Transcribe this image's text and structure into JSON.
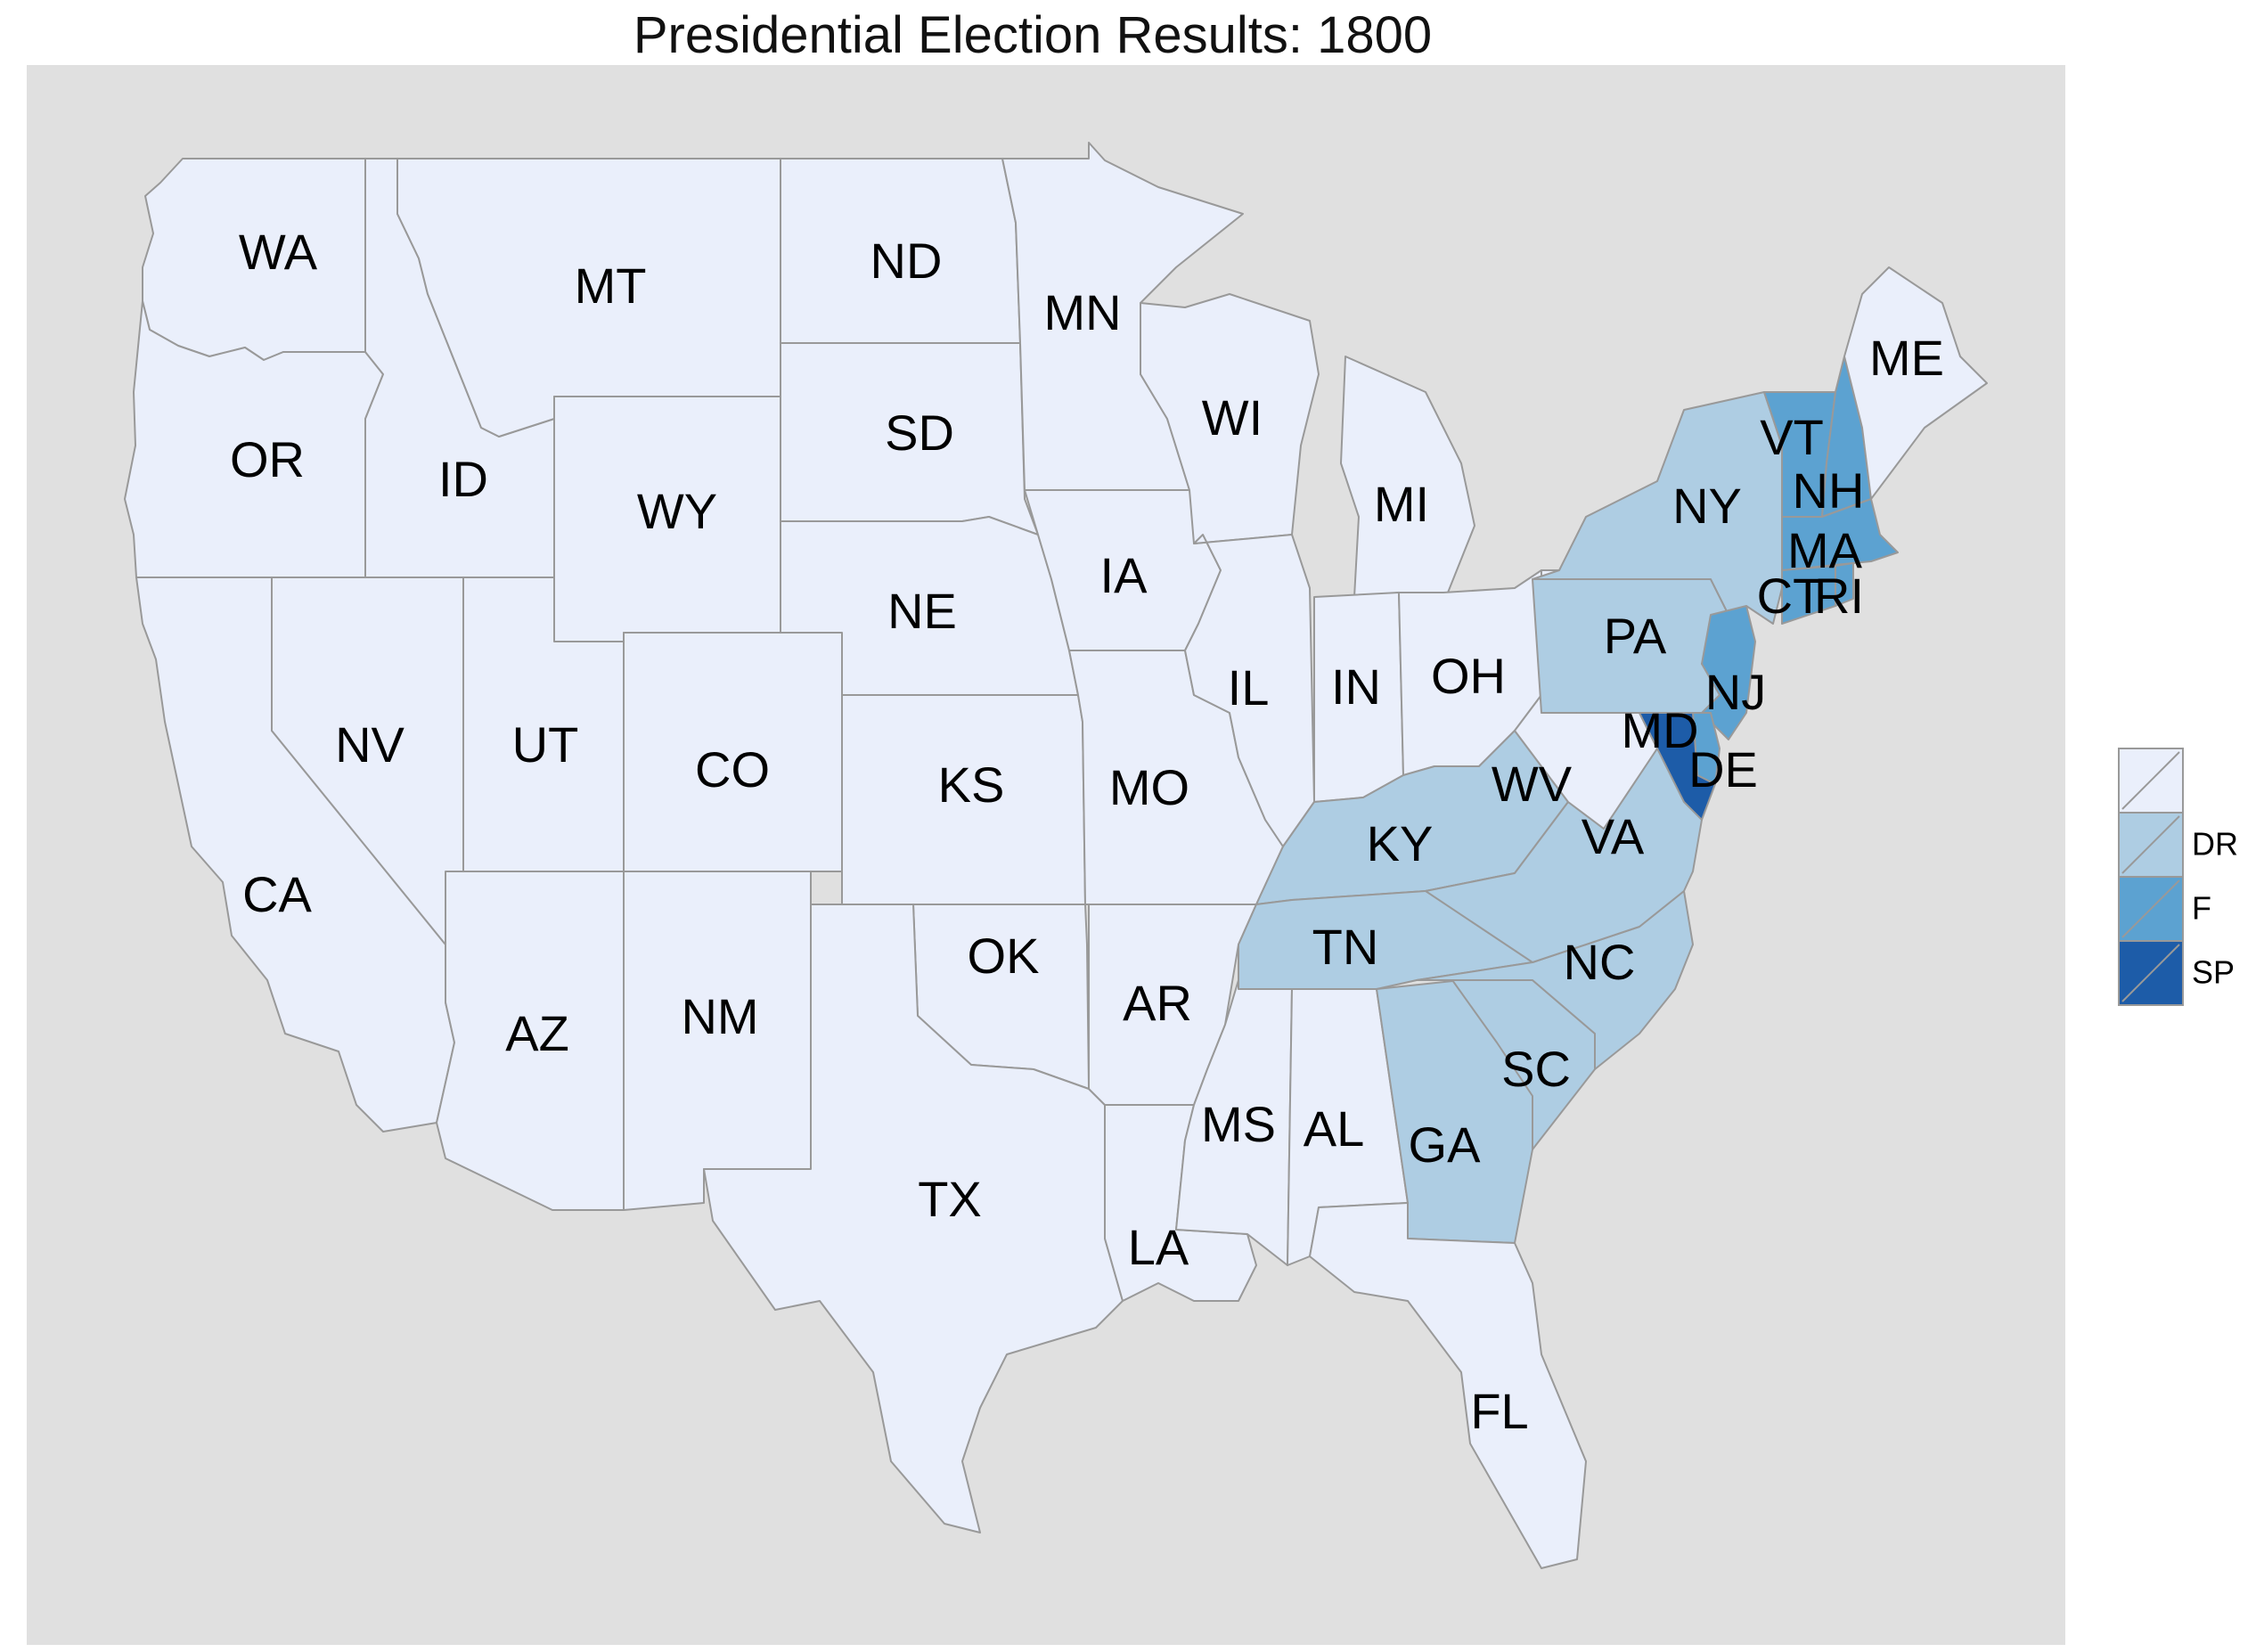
{
  "title": "Presidential Election Results: 1800",
  "colors": {
    "panel": "#e0e0e0",
    "none": "#eaeffb",
    "DR": "#aecde3",
    "F": "#5ca2d1",
    "SP": "#1d5ca8",
    "border": "#999999"
  },
  "legend": {
    "items": [
      {
        "key": "none",
        "label": ""
      },
      {
        "key": "DR",
        "label": "DR"
      },
      {
        "key": "F",
        "label": "F"
      },
      {
        "key": "SP",
        "label": "SP"
      }
    ]
  },
  "states": [
    {
      "abbr": "WA",
      "party": "none"
    },
    {
      "abbr": "OR",
      "party": "none"
    },
    {
      "abbr": "CA",
      "party": "none"
    },
    {
      "abbr": "ID",
      "party": "none"
    },
    {
      "abbr": "NV",
      "party": "none"
    },
    {
      "abbr": "MT",
      "party": "none"
    },
    {
      "abbr": "WY",
      "party": "none"
    },
    {
      "abbr": "UT",
      "party": "none"
    },
    {
      "abbr": "AZ",
      "party": "none"
    },
    {
      "abbr": "CO",
      "party": "none"
    },
    {
      "abbr": "NM",
      "party": "none"
    },
    {
      "abbr": "ND",
      "party": "none"
    },
    {
      "abbr": "SD",
      "party": "none"
    },
    {
      "abbr": "NE",
      "party": "none"
    },
    {
      "abbr": "KS",
      "party": "none"
    },
    {
      "abbr": "OK",
      "party": "none"
    },
    {
      "abbr": "TX",
      "party": "none"
    },
    {
      "abbr": "MN",
      "party": "none"
    },
    {
      "abbr": "IA",
      "party": "none"
    },
    {
      "abbr": "MO",
      "party": "none"
    },
    {
      "abbr": "AR",
      "party": "none"
    },
    {
      "abbr": "LA",
      "party": "none"
    },
    {
      "abbr": "WI",
      "party": "none"
    },
    {
      "abbr": "IL",
      "party": "none"
    },
    {
      "abbr": "MS",
      "party": "none"
    },
    {
      "abbr": "MI",
      "party": "none"
    },
    {
      "abbr": "IN",
      "party": "none"
    },
    {
      "abbr": "AL",
      "party": "none"
    },
    {
      "abbr": "OH",
      "party": "none"
    },
    {
      "abbr": "KY",
      "party": "DR"
    },
    {
      "abbr": "TN",
      "party": "DR"
    },
    {
      "abbr": "GA",
      "party": "DR"
    },
    {
      "abbr": "FL",
      "party": "none"
    },
    {
      "abbr": "SC",
      "party": "DR"
    },
    {
      "abbr": "NC",
      "party": "DR"
    },
    {
      "abbr": "VA",
      "party": "DR"
    },
    {
      "abbr": "WV",
      "party": "none"
    },
    {
      "abbr": "PA",
      "party": "DR"
    },
    {
      "abbr": "NY",
      "party": "DR"
    },
    {
      "abbr": "NJ",
      "party": "F"
    },
    {
      "abbr": "DE",
      "party": "F"
    },
    {
      "abbr": "MD",
      "party": "SP"
    },
    {
      "abbr": "VT",
      "party": "F"
    },
    {
      "abbr": "NH",
      "party": "F"
    },
    {
      "abbr": "MA",
      "party": "F"
    },
    {
      "abbr": "CT",
      "party": "F"
    },
    {
      "abbr": "RI",
      "party": "F"
    },
    {
      "abbr": "ME",
      "party": "none"
    }
  ]
}
